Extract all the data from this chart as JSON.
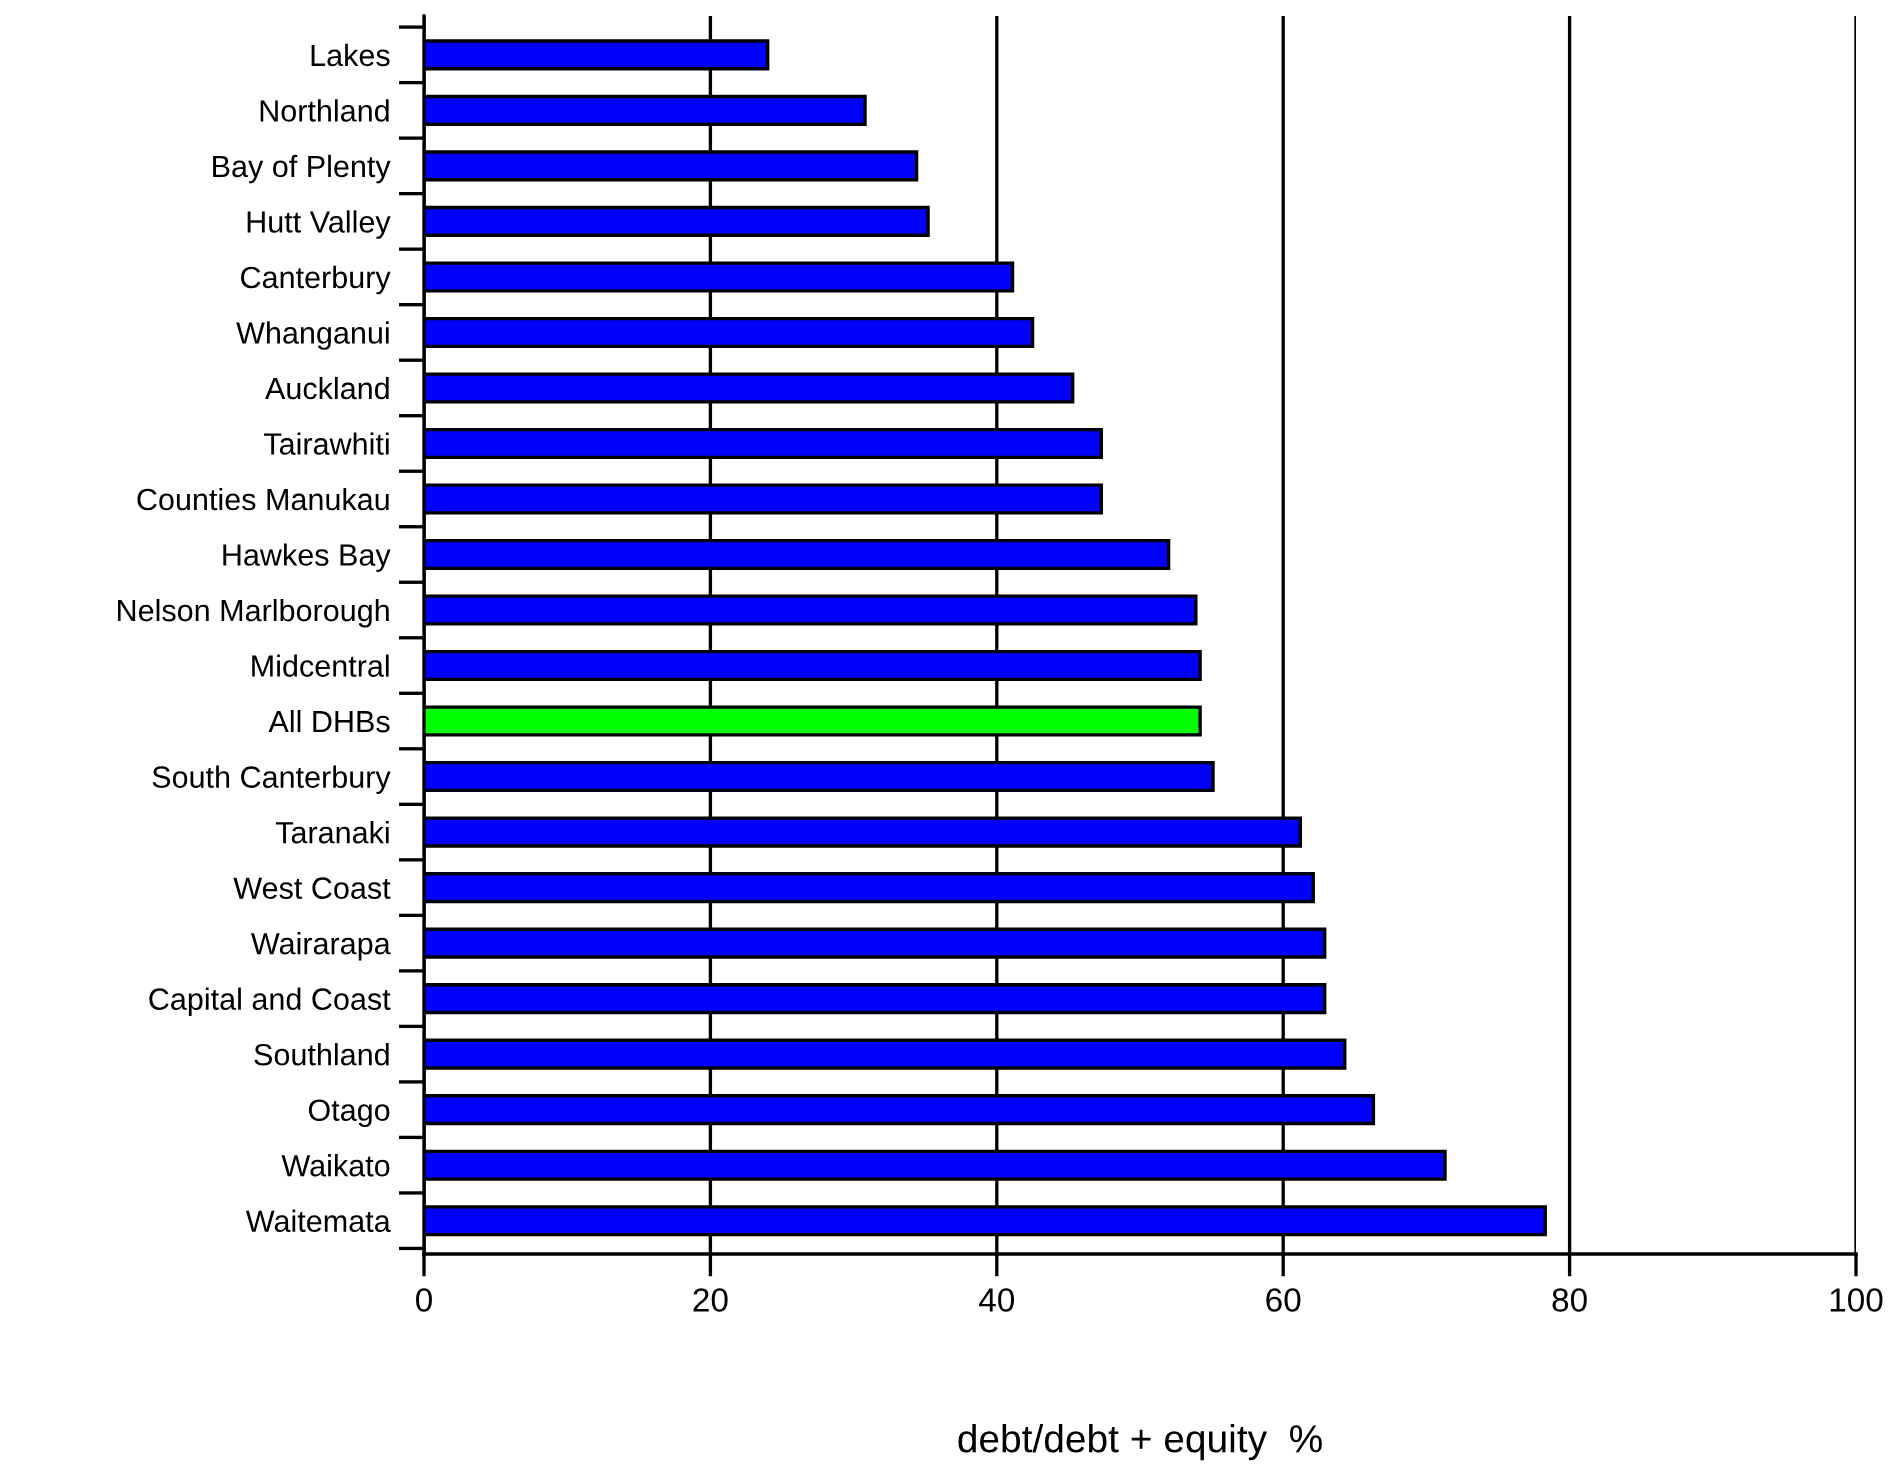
{
  "chart_data": {
    "type": "bar",
    "orientation": "horizontal",
    "xlabel": "debt/debt + equity  %",
    "categories": [
      "Lakes",
      "Northland",
      "Bay of Plenty",
      "Hutt Valley",
      "Canterbury",
      "Whanganui",
      "Auckland",
      "Tairawhiti",
      "Counties Manukau",
      "Hawkes Bay",
      "Nelson Marlborough",
      "Midcentral",
      "All DHBs",
      "South Canterbury",
      "Taranaki",
      "West Coast",
      "Wairarapa",
      "Capital and Coast",
      "Southland",
      "Otago",
      "Waikato",
      "Waitemata"
    ],
    "values": [
      24.0,
      30.8,
      34.4,
      35.2,
      41.1,
      42.5,
      45.3,
      47.3,
      47.3,
      52.0,
      53.9,
      54.2,
      54.2,
      55.1,
      61.2,
      62.1,
      62.9,
      62.9,
      64.3,
      66.3,
      71.3,
      78.3
    ],
    "colors": [
      "#0000ff",
      "#0000ff",
      "#0000ff",
      "#0000ff",
      "#0000ff",
      "#0000ff",
      "#0000ff",
      "#0000ff",
      "#0000ff",
      "#0000ff",
      "#0000ff",
      "#0000ff",
      "#00ff00",
      "#0000ff",
      "#0000ff",
      "#0000ff",
      "#0000ff",
      "#0000ff",
      "#0000ff",
      "#0000ff",
      "#0000ff",
      "#0000ff"
    ],
    "xlim": [
      0,
      100
    ],
    "xticks": [
      0,
      20,
      40,
      60,
      80,
      100
    ],
    "grid": "x"
  }
}
